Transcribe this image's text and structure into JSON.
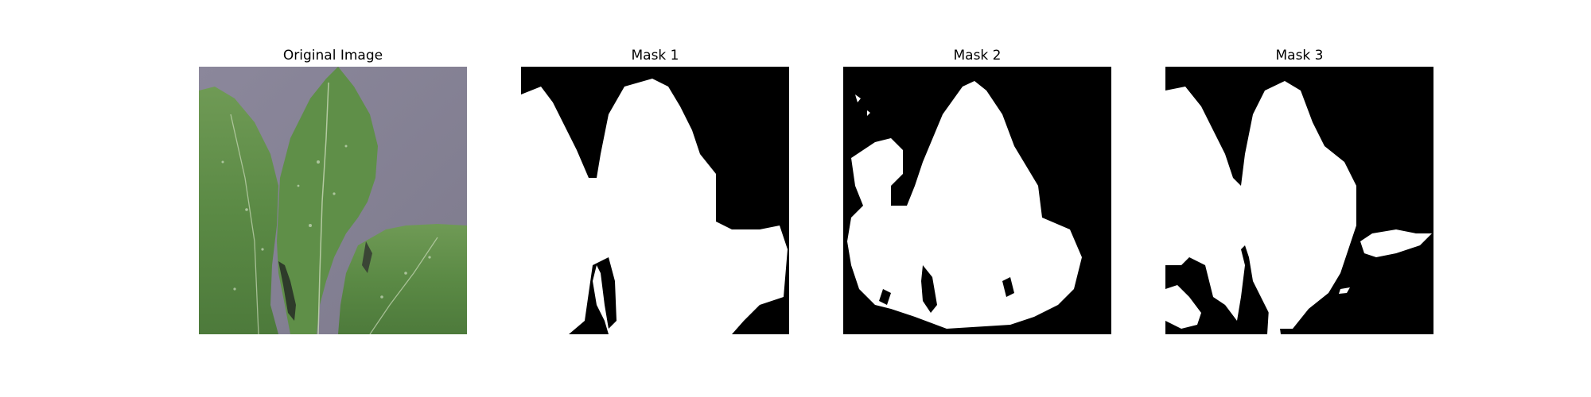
{
  "figure": {
    "panels": [
      {
        "title": "Original Image",
        "kind": "photo",
        "icon": "leaf-photo"
      },
      {
        "title": "Mask 1",
        "kind": "mask",
        "icon": "segmentation-mask"
      },
      {
        "title": "Mask 2",
        "kind": "mask",
        "icon": "segmentation-mask"
      },
      {
        "title": "Mask 3",
        "kind": "mask",
        "icon": "segmentation-mask"
      }
    ],
    "colors": {
      "background": "#ffffff",
      "mask_foreground": "#ffffff",
      "mask_background": "#000000",
      "photo_background": "#8e8b9c",
      "leaf_green": "#5b8a45",
      "leaf_dark": "#3e6a32"
    }
  }
}
